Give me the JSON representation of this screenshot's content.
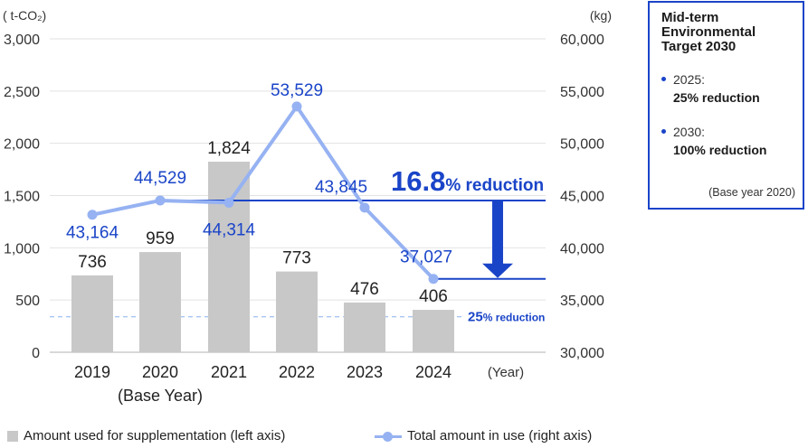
{
  "chart_data": {
    "type": "bar+line",
    "categories": [
      "2019",
      "2020",
      "2021",
      "2022",
      "2023",
      "2024"
    ],
    "base_year_note": "(Base Year)",
    "x_unit": "(Year)",
    "left_axis": {
      "unit": "( t-CO₂)",
      "ylim": [
        0,
        3000
      ],
      "ticks": [
        "0",
        "500",
        "1,000",
        "1,500",
        "2,000",
        "2,500",
        "3,000"
      ]
    },
    "right_axis": {
      "unit": "(kg)",
      "ylim": [
        30000,
        60000
      ],
      "ticks": [
        "30,000",
        "35,000",
        "40,000",
        "45,000",
        "50,000",
        "55,000",
        "60,000"
      ]
    },
    "series": [
      {
        "name": "Amount used for supplementation (left axis)",
        "type": "bar",
        "axis": "left",
        "values": [
          736,
          959,
          1824,
          773,
          476,
          406
        ],
        "labels": [
          "736",
          "959",
          "1,824",
          "773",
          "476",
          "406"
        ]
      },
      {
        "name": "Total amount in use (right axis)",
        "type": "line",
        "axis": "right",
        "values": [
          43164,
          44529,
          44314,
          53529,
          43845,
          37027
        ],
        "labels": [
          "43,164",
          "44,529",
          "44,314",
          "53,529",
          "43,845",
          "37,027"
        ]
      }
    ],
    "annotations": {
      "reduction_big": {
        "number": "16.8",
        "suffix": "% reduction",
        "from_value": 44529,
        "to_value": 37027
      },
      "reduction_small": {
        "number": "25",
        "suffix": "% reduction",
        "value": 33397
      }
    },
    "colors": {
      "bar": "#c8c8c8",
      "line": "#96b2f2",
      "label_blue": "#1a44c8",
      "ref_line": "#1a44c8",
      "dashed": "#8ab0ee"
    },
    "grid": true
  },
  "target_box": {
    "title": "Mid-term Environmental Target 2030",
    "items": [
      {
        "year": "2025:",
        "value": "25% reduction"
      },
      {
        "year": "2030:",
        "value": "100% reduction"
      }
    ],
    "base_note": "(Base year 2020)"
  }
}
